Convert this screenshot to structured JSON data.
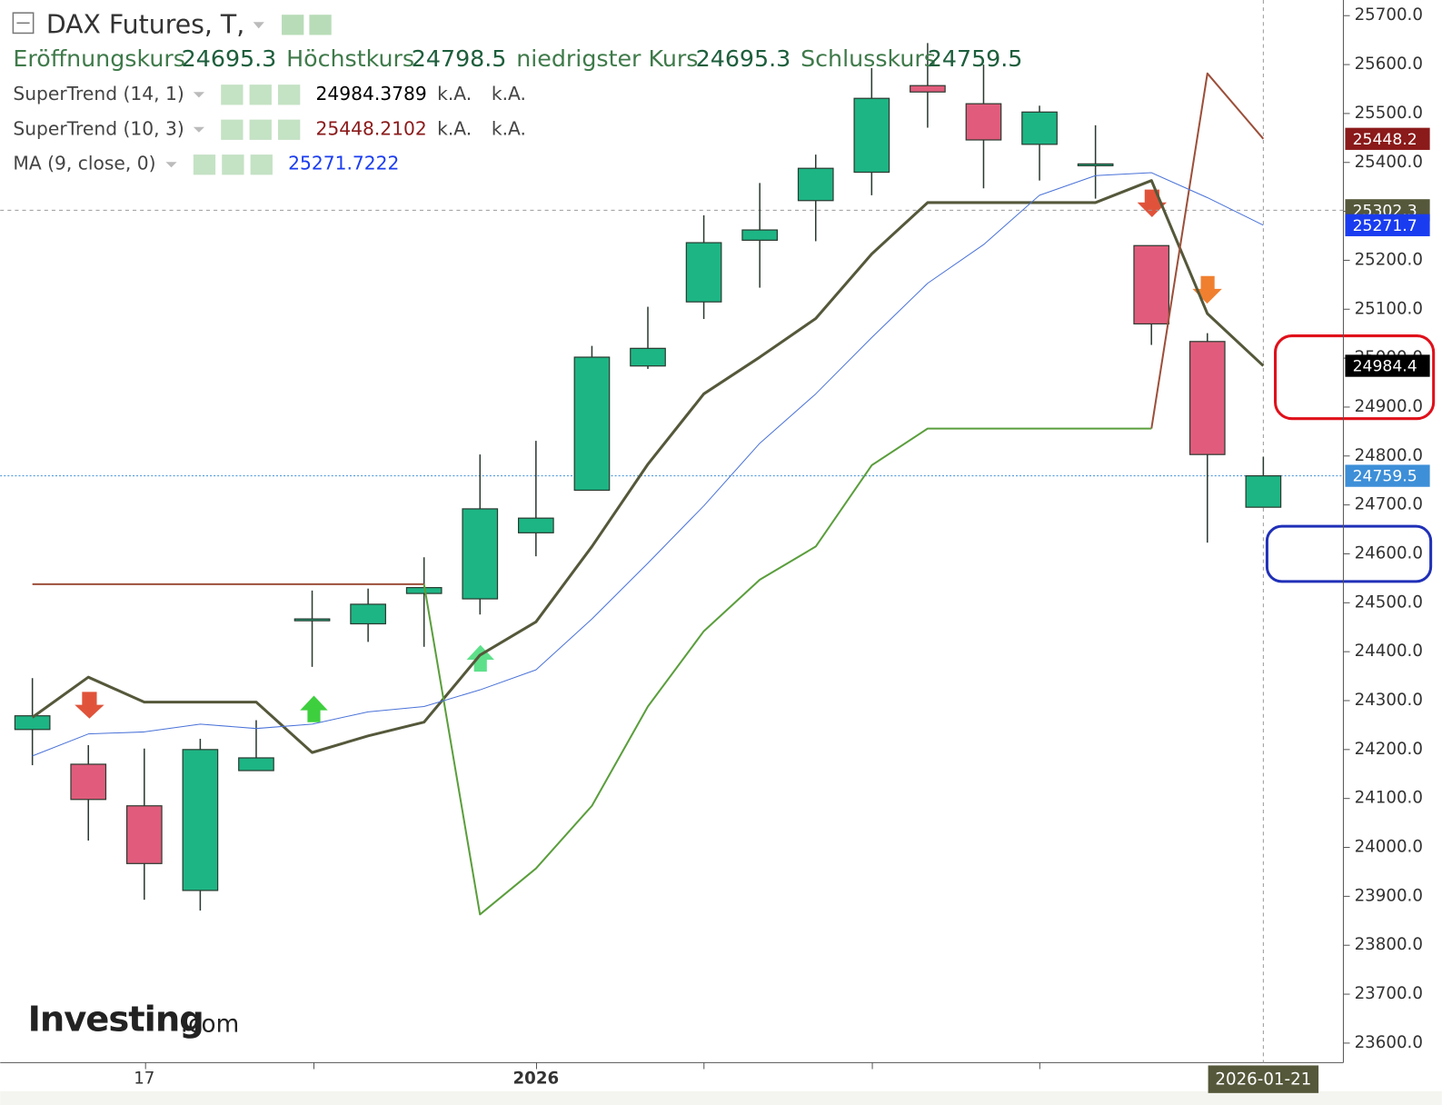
{
  "chart_data": {
    "type": "candlestick",
    "title": "DAX Futures, T,",
    "ohlc_names": [
      "Eröffnungskurs",
      "Höchstkurs",
      "niedrigster Kurs",
      "Schlusskurs"
    ],
    "categories": [
      null,
      null,
      "17",
      null,
      null,
      null,
      null,
      null,
      null,
      "2026",
      null,
      null,
      null,
      null,
      null,
      null,
      null,
      null,
      null,
      null,
      null,
      null,
      null
    ],
    "open": [
      24241,
      24170,
      24085,
      23912,
      24157,
      24467,
      24457,
      24519,
      24508,
      24643,
      24730,
      24984,
      25115,
      25241,
      25322,
      25380,
      25557,
      25520,
      25437,
      25397,
      25230,
      25034,
      24695.3
    ],
    "high": [
      24346,
      24209,
      24202,
      24222,
      24260,
      24525,
      24529,
      24593,
      24803,
      24831,
      25025,
      25105,
      25292,
      25358,
      25416,
      25593,
      25644,
      25600,
      25516,
      25476,
      25230,
      25051,
      24798.5
    ],
    "low": [
      24168,
      24014,
      23893,
      23871,
      24157,
      24369,
      24420,
      24410,
      24476,
      24595,
      24730,
      24978,
      25080,
      25144,
      25239,
      25333,
      25471,
      25347,
      25363,
      25326,
      25027,
      24623,
      24695.3
    ],
    "close": [
      24269,
      24098,
      23967,
      24200,
      24183,
      24467,
      24497,
      24531,
      24692,
      24673,
      25002,
      25020,
      25236,
      25262,
      25388,
      25531,
      25544,
      25446,
      25503,
      25397,
      25070,
      24803,
      24759.5
    ],
    "up_color": "#1db584",
    "down_color": "#e15c7c",
    "close_badge_color": "#3d8fd8",
    "series": [
      {
        "name": "SuperTrend (14, 1)",
        "color": "#55583a",
        "width": 3,
        "badge_color": "#000000",
        "badge_label": "24984.4",
        "extra_labels": [
          "k.A.",
          "k.A."
        ],
        "values": [
          24266,
          24348,
          24297,
          24297,
          24297,
          24194,
          24228,
          24256,
          24393,
          24461,
          24615,
          24783,
          24927,
          25002,
          25081,
          25213,
          25318,
          25318,
          25318,
          25318,
          25363,
          25091,
          24984.3789
        ]
      },
      {
        "name": "SuperTrend (10, 3)",
        "color": "#9c4f3a",
        "width": 2,
        "badge_color": "#8b1a1a",
        "badge_label": "25448.2",
        "extra_labels": [
          "k.A.",
          "k.A."
        ],
        "values": [
          24538,
          24538,
          24538,
          24538,
          24538,
          24538,
          24538,
          24538,
          null,
          null,
          null,
          null,
          null,
          null,
          null,
          null,
          null,
          null,
          null,
          null,
          24856,
          25582,
          25448.2102
        ]
      },
      {
        "color": "#5a9e3c",
        "width": 2,
        "values": [
          null,
          null,
          null,
          null,
          null,
          null,
          null,
          24538,
          23863,
          23957,
          24085,
          24288,
          24442,
          24547,
          24615,
          24781,
          24856,
          24856,
          24856,
          24856,
          24856,
          null,
          null
        ]
      },
      {
        "name": "MA (9, close, 0)",
        "color": "#4a72d8",
        "width": 1,
        "badge_color": "#1a3cf0",
        "badge_label": "25271.7",
        "values": [
          24187,
          24232,
          24236,
          24252,
          24243,
          24252,
          24277,
          24288,
          24322,
          24363,
          24467,
          24581,
          24698,
          24826,
          24927,
          25042,
          25153,
          25232,
          25333,
          25373,
          25379,
          25328,
          25271.7222
        ]
      }
    ],
    "crosshair": {
      "value": 25302.3,
      "color": "#55583a",
      "x_label": "2026-01-21"
    },
    "ylim": [
      23560,
      25732
    ],
    "yticks": [
      {
        "value": 25700,
        "label": "25700.0"
      },
      {
        "value": 25600,
        "label": "25600.0"
      },
      {
        "value": 25500,
        "label": "25500.0"
      },
      {
        "value": 25400,
        "label": "25400.0"
      },
      {
        "value": 25300,
        "label": "25300.0"
      },
      {
        "value": 25200,
        "label": "25200.0"
      },
      {
        "value": 25100,
        "label": "25100.0"
      },
      {
        "value": 25000,
        "label": "25000.0"
      },
      {
        "value": 24900,
        "label": "24900.0"
      },
      {
        "value": 24800,
        "label": "24800.0"
      },
      {
        "value": 24700,
        "label": "24700.0"
      },
      {
        "value": 24600,
        "label": "24600.0"
      },
      {
        "value": 24500,
        "label": "24500.0"
      },
      {
        "value": 24400,
        "label": "24400.0"
      },
      {
        "value": 24300,
        "label": "24300.0"
      },
      {
        "value": 24200,
        "label": "24200.0"
      },
      {
        "value": 24100,
        "label": "24100.0"
      },
      {
        "value": 24000,
        "label": "24000.0"
      },
      {
        "value": 23900,
        "label": "23900.0"
      },
      {
        "value": 23800,
        "label": "23800.0"
      },
      {
        "value": 23700,
        "label": "23700.0"
      },
      {
        "value": 23600,
        "label": "23600.0"
      }
    ],
    "watermark": "Investing",
    "watermark_suffix": ".com"
  }
}
